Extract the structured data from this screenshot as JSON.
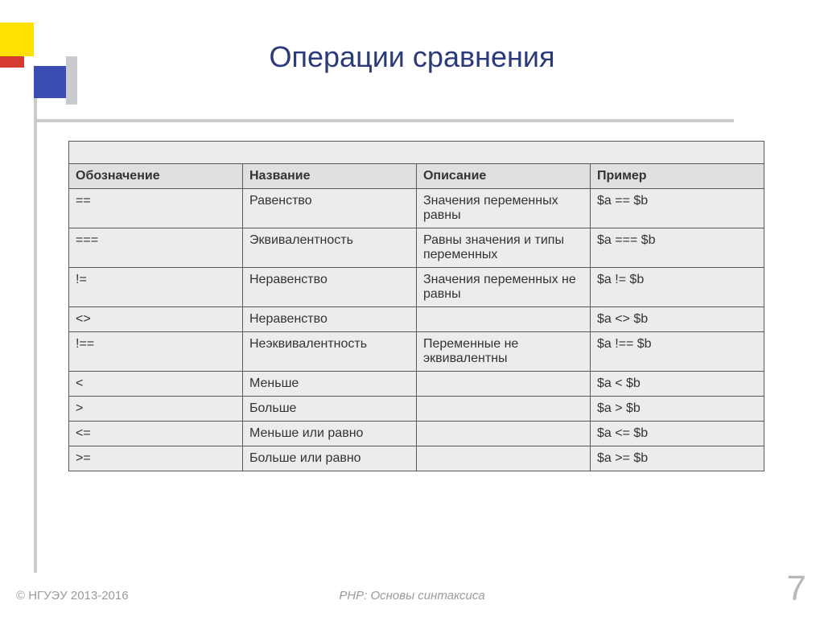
{
  "title": "Операции сравнения",
  "footer": {
    "copyright": "© НГУЭУ 2013-2016",
    "subtitle": "PHP: Основы синтаксиса",
    "page_number": "7"
  },
  "table": {
    "columns": [
      "Обозначение",
      "Название",
      "Описание",
      "Пример"
    ],
    "column_widths_pct": [
      24,
      24,
      28,
      24
    ],
    "header_bg": "#e0e0e0",
    "cell_bg": "#ececec",
    "border_color": "#5a5a5a",
    "font_size_pt": 12,
    "rows": [
      [
        "==",
        "Равенство",
        "Значения переменных равны",
        "$a == $b"
      ],
      [
        "===",
        "Эквивалентность",
        "Равны значения и типы переменных",
        "$a === $b"
      ],
      [
        "!=",
        "Неравенство",
        "Значения переменных не равны",
        "$a != $b"
      ],
      [
        "<>",
        "Неравенство",
        "",
        "$a <> $b"
      ],
      [
        "!==",
        "Неэквивалентность",
        "Переменные не эквивалентны",
        "$a !== $b"
      ],
      [
        "<",
        "Меньше",
        "",
        "$a < $b"
      ],
      [
        ">",
        "Больше",
        "",
        "$a > $b"
      ],
      [
        "<=",
        "Меньше или равно",
        "",
        "$a <= $b"
      ],
      [
        ">=",
        "Больше или равно",
        "",
        "$a >= $b"
      ]
    ]
  },
  "decorations": {
    "yellow": "#fee100",
    "red": "#d63b2f",
    "blue": "#3b4db0",
    "grey": "#c9cbce"
  },
  "title_color": "#2b3a7a",
  "title_fontsize_pt": 28,
  "background_color": "#ffffff"
}
